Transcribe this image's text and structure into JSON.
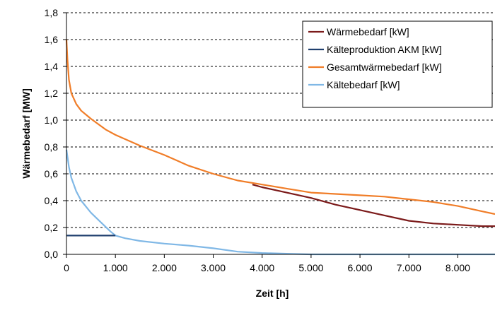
{
  "chart_data": {
    "type": "line",
    "xlabel": "Zeit [h]",
    "ylabel": "Wärmebedarf [MW]",
    "xlim": [
      0,
      8760
    ],
    "ylim": [
      0,
      1.8
    ],
    "x_ticks": [
      0,
      1000,
      2000,
      3000,
      4000,
      5000,
      6000,
      7000,
      8000
    ],
    "x_tick_labels": [
      "0",
      "1.000",
      "2.000",
      "3.000",
      "4.000",
      "5.000",
      "6.000",
      "7.000",
      "8.000"
    ],
    "y_ticks": [
      0,
      0.2,
      0.4,
      0.6,
      0.8,
      1.0,
      1.2,
      1.4,
      1.6,
      1.8
    ],
    "y_tick_labels": [
      "0,0",
      "0,2",
      "0,4",
      "0,6",
      "0,8",
      "1,0",
      "1,2",
      "1,4",
      "1,6",
      "1,8"
    ],
    "grid": "horizontal dashed",
    "legend_position": "top-right",
    "series": [
      {
        "name": "Wärmebedarf [kW]",
        "color": "#7b1a1a",
        "x": [
          3800,
          4000,
          4500,
          5000,
          5500,
          6000,
          6500,
          7000,
          7500,
          8000,
          8500,
          8760
        ],
        "y": [
          0.52,
          0.5,
          0.46,
          0.42,
          0.37,
          0.33,
          0.29,
          0.25,
          0.23,
          0.22,
          0.21,
          0.21
        ]
      },
      {
        "name": "Kälteproduktion AKM [kW]",
        "color": "#1f3f6e",
        "x": [
          0,
          500,
          900,
          1000
        ],
        "y": [
          0.14,
          0.14,
          0.14,
          0.14
        ]
      },
      {
        "name": "Gesamtwärmebedarf [kW]",
        "color": "#f07d28",
        "x": [
          0,
          20,
          50,
          100,
          200,
          300,
          500,
          800,
          1000,
          1500,
          2000,
          2500,
          3000,
          3500,
          4000,
          4500,
          5000,
          5500,
          6000,
          6500,
          7000,
          7500,
          8000,
          8500,
          8760
        ],
        "y": [
          1.6,
          1.45,
          1.3,
          1.2,
          1.12,
          1.07,
          1.01,
          0.93,
          0.89,
          0.81,
          0.74,
          0.66,
          0.6,
          0.55,
          0.52,
          0.49,
          0.46,
          0.45,
          0.44,
          0.43,
          0.41,
          0.39,
          0.36,
          0.32,
          0.3
        ]
      },
      {
        "name": "Kältebedarf [kW]",
        "color": "#80b8e6",
        "x": [
          0,
          50,
          100,
          200,
          300,
          500,
          700,
          900,
          1000,
          1200,
          1500,
          2000,
          2500,
          3000,
          3500,
          4000,
          4500,
          5000,
          6000,
          7000,
          8000,
          8760
        ],
        "y": [
          0.78,
          0.65,
          0.57,
          0.47,
          0.4,
          0.31,
          0.24,
          0.17,
          0.14,
          0.12,
          0.1,
          0.08,
          0.065,
          0.045,
          0.02,
          0.01,
          0.005,
          0.0,
          0.0,
          0.0,
          0.0,
          0.0
        ]
      }
    ]
  }
}
